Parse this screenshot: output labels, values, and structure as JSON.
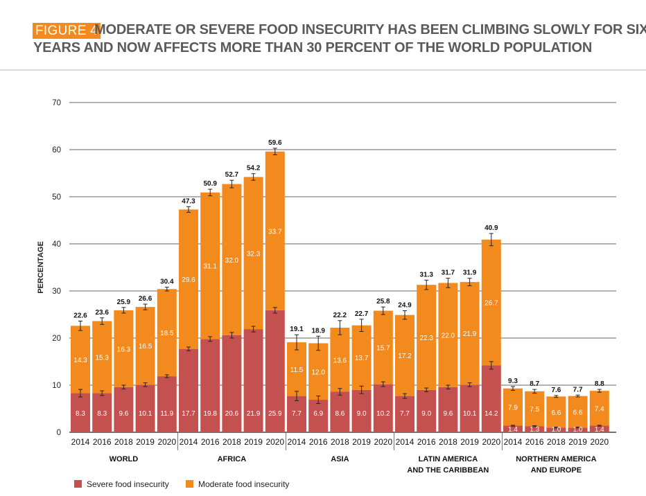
{
  "header": {
    "figure_label": "FIGURE 4",
    "title_line1": "MODERATE OR SEVERE FOOD INSECURITY HAS BEEN CLIMBING SLOWLY FOR SIX",
    "title_line2": "YEARS AND NOW AFFECTS MORE THAN 30 PERCENT OF THE WORLD POPULATION"
  },
  "colors": {
    "severe": "#c4514f",
    "moderate": "#f28a1d",
    "badge": "#f28a1d",
    "title": "#5a5a5a"
  },
  "legend": {
    "severe": "Severe food insecurity",
    "moderate": "Moderate food insecurity"
  },
  "chart_data": {
    "type": "bar",
    "stacked": true,
    "ylabel": "PERCENTAGE",
    "ylim": [
      0,
      70
    ],
    "yticks": [
      0,
      10,
      20,
      30,
      40,
      50,
      60,
      70
    ],
    "grid": true,
    "legend_position": "bottom-left",
    "groups": [
      {
        "name": "WORLD",
        "years": [
          "2014",
          "2016",
          "2018",
          "2019",
          "2020"
        ],
        "severe": [
          8.3,
          8.3,
          9.6,
          10.1,
          11.9
        ],
        "moderate": [
          14.3,
          15.3,
          16.3,
          16.5,
          18.5
        ],
        "total": [
          22.6,
          23.6,
          25.9,
          26.6,
          30.4
        ],
        "severe_err": [
          0.8,
          0.5,
          0.4,
          0.4,
          0.3
        ],
        "total_err": [
          1.0,
          0.7,
          0.6,
          0.6,
          0.4
        ]
      },
      {
        "name": "AFRICA",
        "years": [
          "2014",
          "2016",
          "2018",
          "2019",
          "2020"
        ],
        "severe": [
          17.7,
          19.8,
          20.6,
          21.9,
          25.9
        ],
        "moderate": [
          29.6,
          31.1,
          32.0,
          32.3,
          33.7
        ],
        "total": [
          47.3,
          50.9,
          52.7,
          54.2,
          59.6
        ],
        "severe_err": [
          0.4,
          0.5,
          0.6,
          0.6,
          0.6
        ],
        "total_err": [
          0.6,
          0.7,
          0.8,
          0.7,
          0.7
        ]
      },
      {
        "name": "ASIA",
        "years": [
          "2014",
          "2016",
          "2018",
          "2019",
          "2020"
        ],
        "severe": [
          7.7,
          6.9,
          8.6,
          9.0,
          10.2
        ],
        "moderate": [
          11.5,
          12.0,
          13.6,
          13.7,
          15.7
        ],
        "total": [
          19.1,
          18.9,
          22.2,
          22.7,
          25.8
        ],
        "severe_err": [
          1.0,
          0.8,
          0.7,
          0.8,
          0.5
        ],
        "total_err": [
          1.6,
          1.5,
          1.5,
          1.3,
          0.8
        ]
      },
      {
        "name": "LATIN AMERICA AND THE CARIBBEAN",
        "years": [
          "2014",
          "2016",
          "2018",
          "2019",
          "2020"
        ],
        "severe": [
          7.7,
          9.0,
          9.6,
          10.1,
          14.2
        ],
        "moderate": [
          17.2,
          22.3,
          22.0,
          21.9,
          26.7
        ],
        "total": [
          24.9,
          31.3,
          31.7,
          31.9,
          40.9
        ],
        "severe_err": [
          0.5,
          0.4,
          0.4,
          0.4,
          0.8
        ],
        "total_err": [
          0.9,
          1.0,
          1.0,
          0.8,
          1.3
        ]
      },
      {
        "name": "NORTHERN AMERICA AND EUROPE",
        "years": [
          "2014",
          "2016",
          "2018",
          "2019",
          "2020"
        ],
        "severe": [
          1.4,
          1.3,
          1.0,
          1.0,
          1.4
        ],
        "moderate": [
          7.9,
          7.5,
          6.6,
          6.6,
          7.4
        ],
        "total": [
          9.3,
          8.7,
          7.6,
          7.7,
          8.8
        ],
        "severe_err": [
          0.1,
          0.1,
          0.1,
          0.1,
          0.1
        ],
        "total_err": [
          0.4,
          0.4,
          0.2,
          0.2,
          0.3
        ]
      }
    ],
    "group_label_lines": [
      [
        "WORLD"
      ],
      [
        "AFRICA"
      ],
      [
        "ASIA"
      ],
      [
        "LATIN AMERICA",
        "AND THE CARIBBEAN"
      ],
      [
        "NORTHERN AMERICA",
        "AND EUROPE"
      ]
    ]
  }
}
